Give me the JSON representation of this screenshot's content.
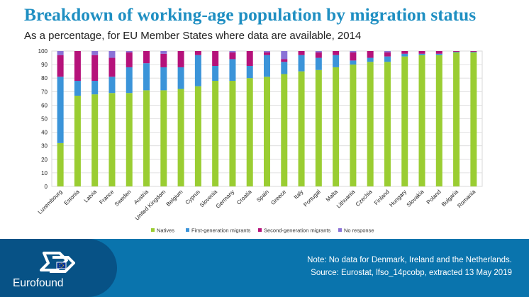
{
  "header": {
    "title": "Breakdown of working-age population by migration status",
    "subtitle": "As a percentage, for EU Member States where data are available, 2014"
  },
  "colors": {
    "title": "#1f8fc2",
    "footer_band": "#0a74ad",
    "footer_dark": "#075286"
  },
  "footer": {
    "brand": "Eurofound",
    "note": "Note: No data for Denmark, Ireland and the Netherlands.",
    "source": "Source: Eurostat, lfso_14pcobp, extracted 13 May 2019",
    "logo_icon": "eurofound-logo-icon"
  },
  "chart_data": {
    "type": "bar",
    "stacked": true,
    "title": "",
    "xlabel": "",
    "ylabel": "",
    "ylim": [
      0,
      100
    ],
    "yticks": [
      0,
      10,
      20,
      30,
      40,
      50,
      60,
      70,
      80,
      90,
      100
    ],
    "grid": true,
    "legend_position": "bottom",
    "categories": [
      "Luxembourg",
      "Estonia",
      "Latvia",
      "France",
      "Sweden",
      "Austria",
      "United Kingdom",
      "Belgium",
      "Cyprus",
      "Slovenia",
      "Germany",
      "Croatia",
      "Spain",
      "Greece",
      "Italy",
      "Portugal",
      "Malta",
      "Lithuania",
      "Czechia",
      "Finland",
      "Hungary",
      "Slovakia",
      "Poland",
      "Bulgaria",
      "Romania"
    ],
    "series": [
      {
        "name": "Natives",
        "color": "#9acd32",
        "values": [
          32,
          67,
          68,
          69,
          69,
          71,
          71,
          72,
          74,
          78,
          78,
          80,
          81,
          83,
          85,
          86,
          88,
          90,
          92,
          92,
          96,
          97,
          97,
          99,
          99
        ]
      },
      {
        "name": "First-generation migrants",
        "color": "#3b94d9",
        "values": [
          49,
          11,
          10,
          12,
          19,
          20,
          17,
          16,
          23,
          11,
          16,
          9,
          16,
          9,
          12,
          9,
          9,
          3,
          3,
          4,
          2,
          1,
          1,
          0.5,
          0.5
        ]
      },
      {
        "name": "Second-generation migrants",
        "color": "#b5127a",
        "values": [
          16,
          22,
          19,
          14,
          11,
          9,
          10,
          12,
          3,
          11,
          5,
          11,
          2,
          2,
          3,
          4,
          3,
          6,
          5,
          3,
          2,
          2,
          2,
          0.5,
          0.5
        ]
      },
      {
        "name": "No response",
        "color": "#8a72d6",
        "values": [
          3,
          0,
          3,
          5,
          1,
          0,
          2,
          0,
          0,
          0,
          1,
          0,
          1,
          6,
          0,
          1,
          0,
          1,
          0,
          1,
          0,
          0,
          0,
          0,
          0
        ]
      }
    ]
  }
}
